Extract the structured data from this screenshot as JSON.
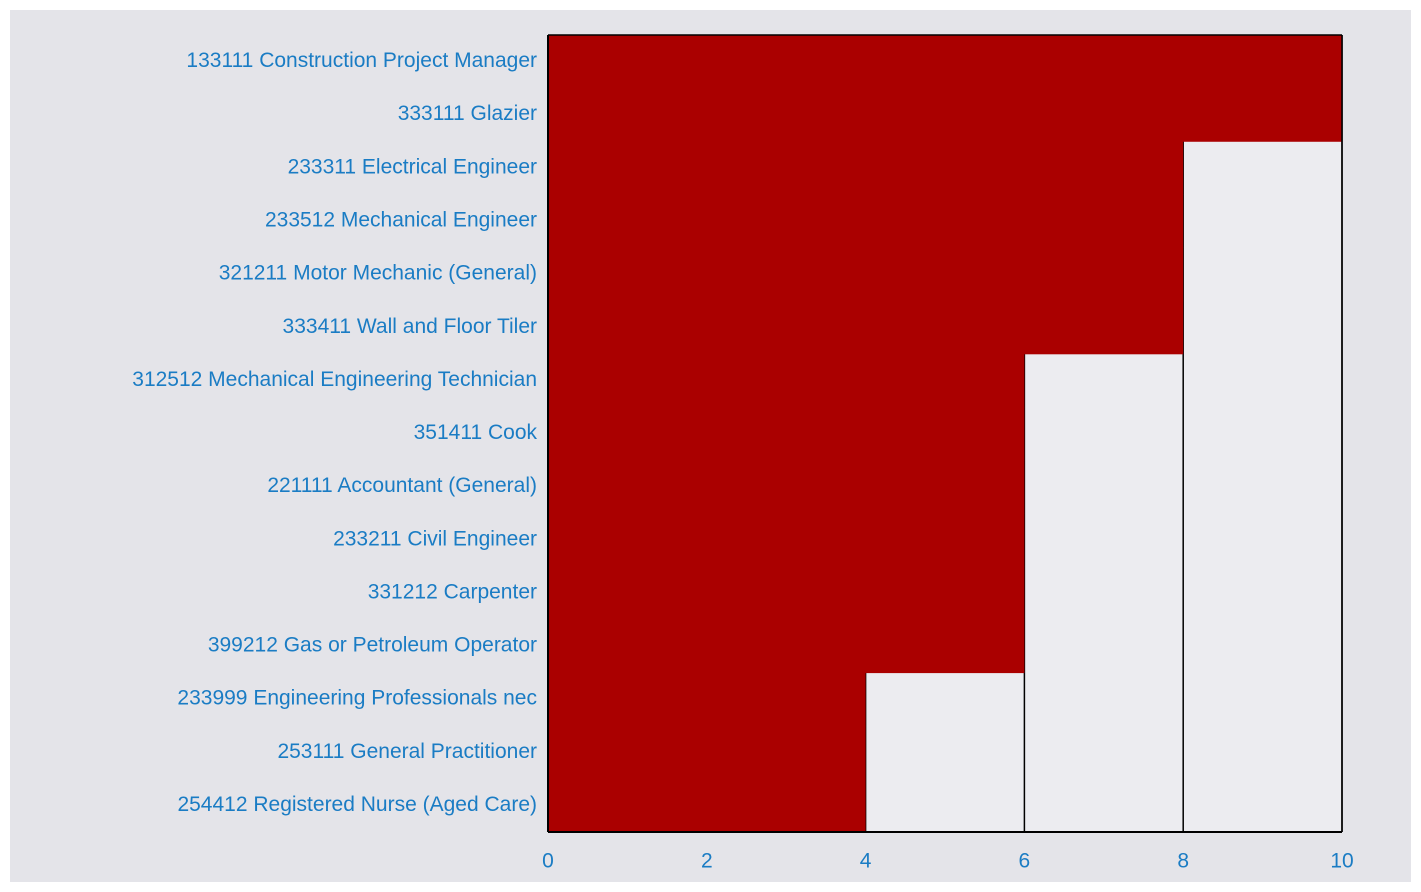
{
  "chart_data": {
    "type": "hbar",
    "categories": [
      "133111 Construction Project Manager",
      "333111 Glazier",
      "233311 Electrical Engineer",
      "233512 Mechanical Engineer",
      "321211 Motor Mechanic (General)",
      "333411 Wall and Floor Tiler",
      "312512 Mechanical Engineering Technician",
      "351411 Cook",
      "221111 Accountant (General)",
      "233211 Civil Engineer",
      "331212 Carpenter",
      "399212 Gas or Petroleum Operator",
      "233999 Engineering Professionals nec",
      "253111 General Practitioner",
      "254412 Registered Nurse (Aged Care)"
    ],
    "values": [
      10,
      10,
      8,
      8,
      8,
      8,
      6,
      6,
      6,
      6,
      6,
      6,
      4,
      4,
      4
    ],
    "color": "#aa0000",
    "xlim": [
      0,
      10
    ],
    "xticks": [
      0,
      2,
      4,
      6,
      8,
      10
    ],
    "grid": true
  }
}
